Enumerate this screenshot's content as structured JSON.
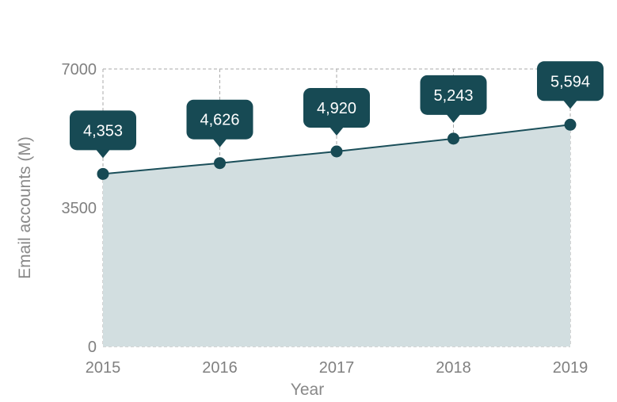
{
  "chart_data": {
    "type": "area",
    "x": [
      "2015",
      "2016",
      "2017",
      "2018",
      "2019"
    ],
    "series": [
      {
        "values": [
          4353,
          4626,
          4920,
          5243,
          5594
        ]
      }
    ],
    "data_labels": [
      "4,353",
      "4,626",
      "4,920",
      "5,243",
      "5,594"
    ],
    "title": "",
    "xlabel": "Year",
    "ylabel": "Email accounts (M)",
    "ylim": [
      0,
      7000
    ],
    "yticks": [
      0,
      3500,
      7000
    ],
    "grid": true,
    "legend": "none",
    "colors": {
      "line": "#1b4f5a",
      "fill": "#d2dee0",
      "marker": "#174a54",
      "label_bg": "#174a54",
      "label_text": "#ffffff",
      "grid": "#aaaaaa",
      "axis_text": "#808080"
    }
  }
}
